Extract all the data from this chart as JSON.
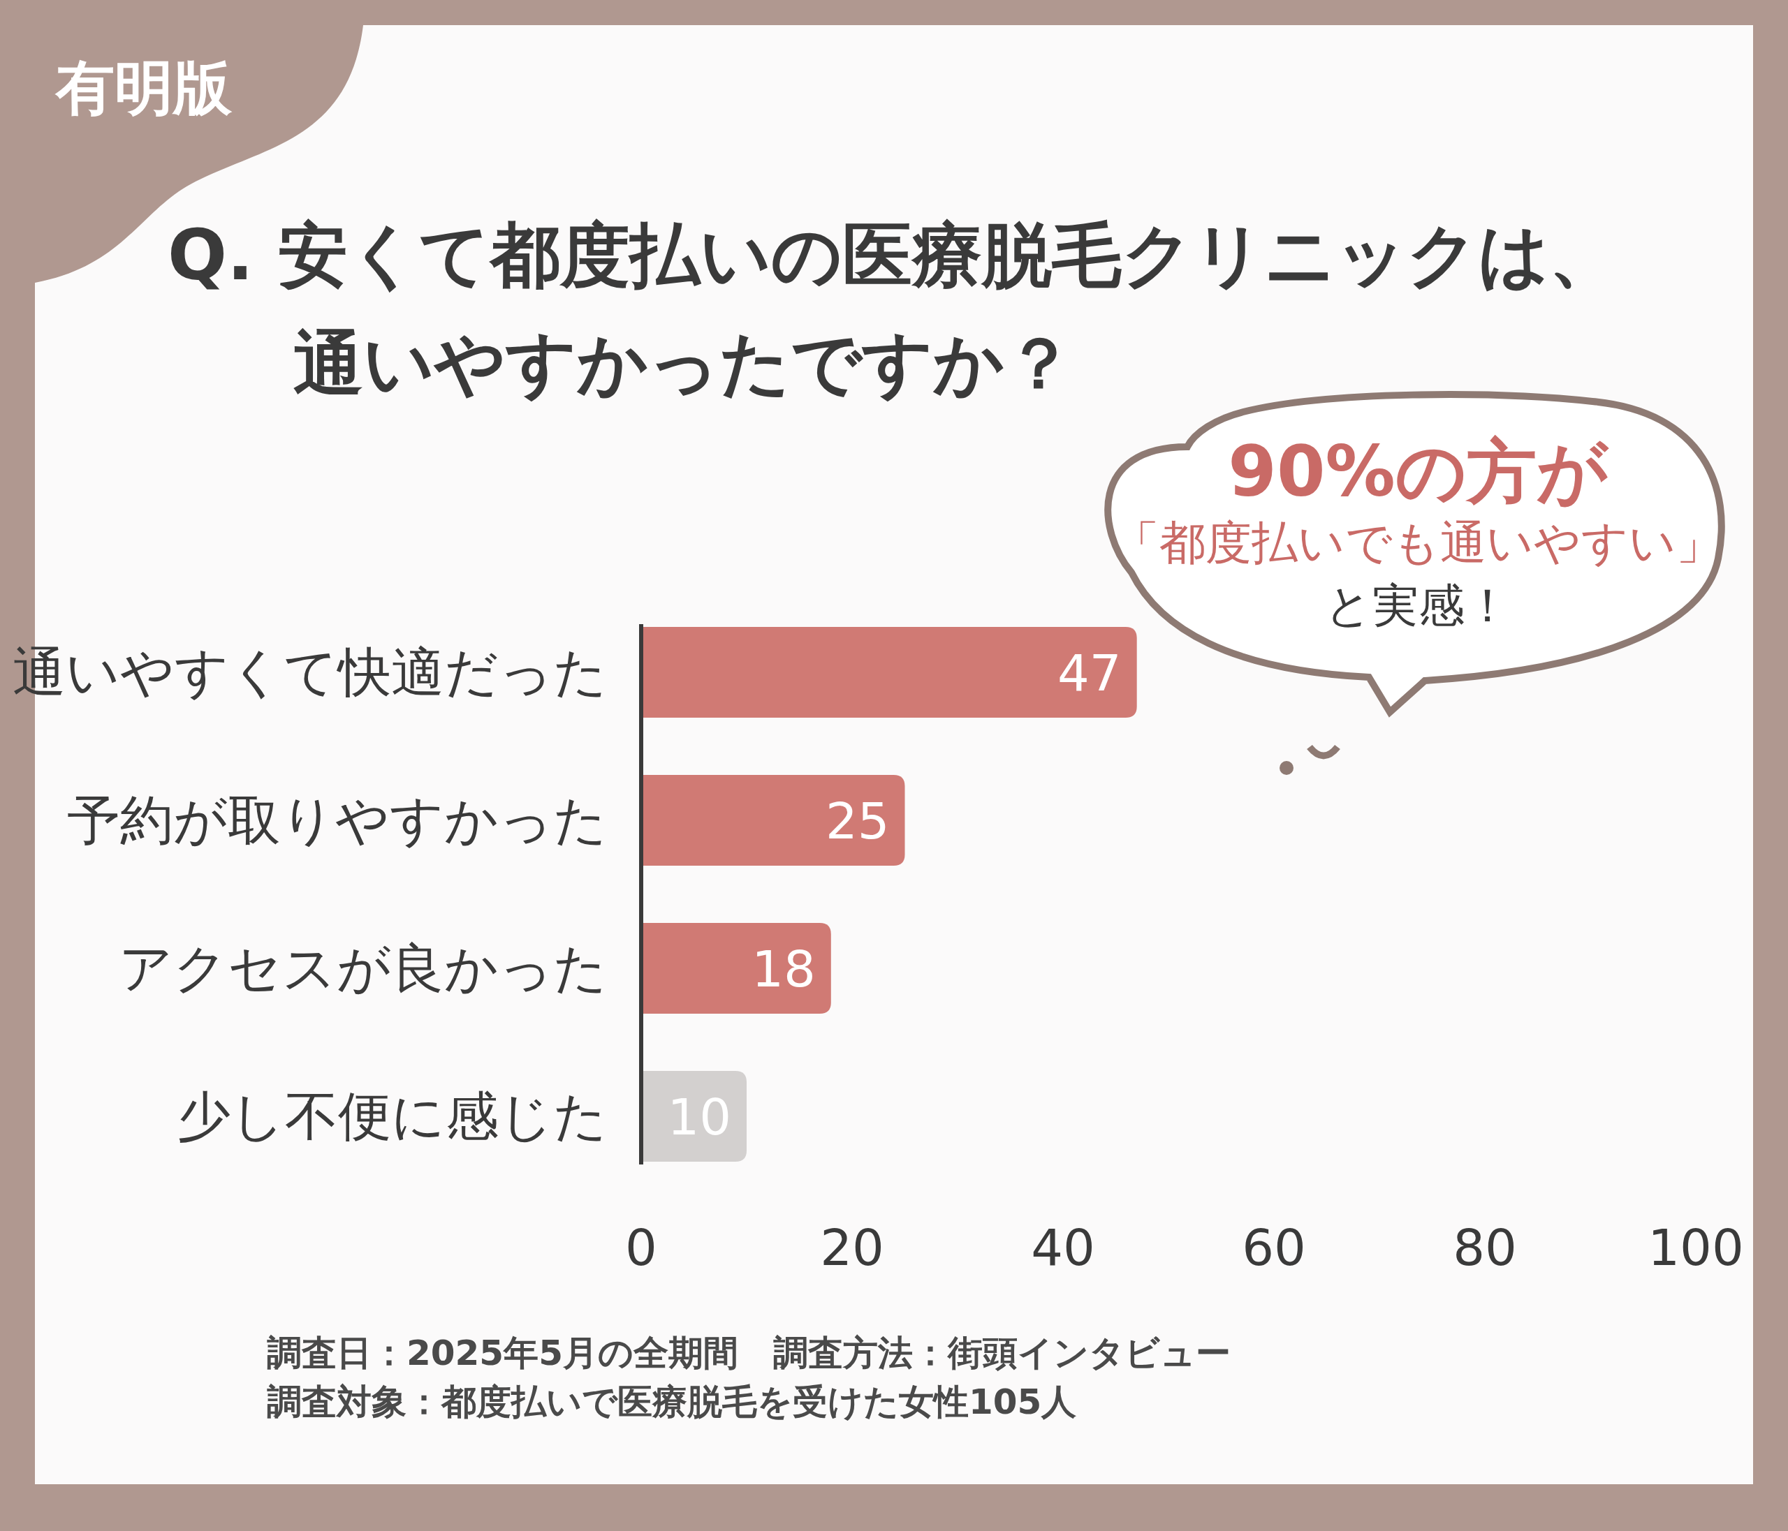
{
  "chart_data": {
    "type": "bar",
    "orientation": "horizontal",
    "title": "Q. 安くて都度払いの医療脱毛クリニックは、通いやすかったですか？",
    "categories": [
      "通いやすくて快適だった",
      "予約が取りやすかった",
      "アクセスが良かった",
      "少し不便に感じた"
    ],
    "values": [
      47,
      25,
      18,
      10
    ],
    "colors": [
      "#d07a74",
      "#d07a74",
      "#d07a74",
      "#d3d0cf"
    ],
    "xlim": [
      0,
      100
    ],
    "xticks": [
      0,
      20,
      40,
      60,
      80,
      100
    ],
    "data_labels": true,
    "annotations": [
      "有明版",
      "90%の方が",
      "「都度払いでも通いやすい」",
      "と実感！",
      "調査日：2025年5月の全期間　調査方法：街頭インタビュー",
      "調査対象：都度払いで医療脱毛を受けた女性105人"
    ]
  }
}
